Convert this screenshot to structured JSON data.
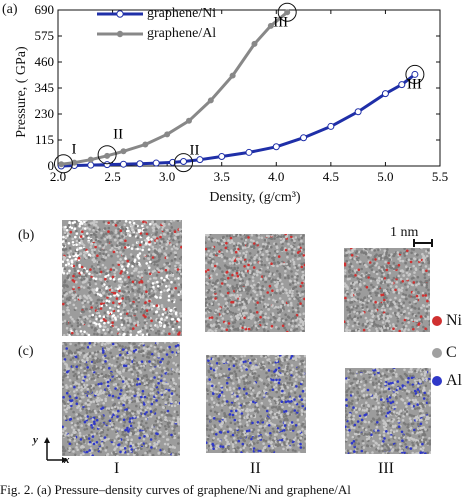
{
  "panels": {
    "a": "(a)",
    "b": "(b)",
    "c": "(c)"
  },
  "chart_data": {
    "type": "line",
    "ylabel": "Pressure, ( GPa)",
    "xlabel": "Density, (g/cm³)",
    "xlim": [
      2.0,
      5.5
    ],
    "ylim": [
      0,
      690
    ],
    "xticks": [
      "2.0",
      "2.5",
      "3.0",
      "3.5",
      "4.0",
      "4.5",
      "5.0",
      "5.5"
    ],
    "yticks": [
      "0",
      "115",
      "230",
      "345",
      "460",
      "575",
      "690"
    ],
    "grid": false,
    "legend_position": "top-left",
    "series": [
      {
        "name": "graphene/Ni",
        "color": "#1f2fa8",
        "marker": "open-circle",
        "x": [
          2.03,
          2.15,
          2.3,
          2.45,
          2.6,
          2.75,
          2.9,
          3.05,
          3.15,
          3.3,
          3.5,
          3.75,
          4.0,
          4.25,
          4.5,
          4.75,
          5.0,
          5.15,
          5.27
        ],
        "y": [
          0,
          2,
          4,
          6,
          8,
          10,
          13,
          16,
          20,
          28,
          42,
          60,
          85,
          125,
          175,
          240,
          320,
          360,
          405
        ]
      },
      {
        "name": "graphene/Al",
        "color": "#888888",
        "marker": "filled-circle",
        "x": [
          2.03,
          2.15,
          2.3,
          2.45,
          2.6,
          2.8,
          3.0,
          3.2,
          3.4,
          3.6,
          3.8,
          3.95,
          4.1
        ],
        "y": [
          8,
          15,
          28,
          45,
          65,
          95,
          140,
          200,
          290,
          400,
          540,
          620,
          680
        ]
      }
    ],
    "annotations": [
      {
        "label": "I",
        "x": 2.05,
        "y": 10
      },
      {
        "label": "II",
        "x": 2.45,
        "y": 50
      },
      {
        "label": "II",
        "x": 3.15,
        "y": 15
      },
      {
        "label": "III",
        "x": 4.1,
        "y": 680
      },
      {
        "label": "III",
        "x": 5.27,
        "y": 405
      }
    ]
  },
  "scale_bar": "1 nm",
  "species_legend": [
    {
      "label": "Ni",
      "color": "#d03030"
    },
    {
      "label": "C",
      "color": "#a0a0a0"
    },
    {
      "label": "Al",
      "color": "#2f38c8"
    }
  ],
  "stages": [
    "I",
    "II",
    "III"
  ],
  "axes_small": {
    "y": "y",
    "x": "x"
  },
  "caption": "Fig. 2.   (a)  Pressure–density curves of graphene/Ni and graphene/Al"
}
